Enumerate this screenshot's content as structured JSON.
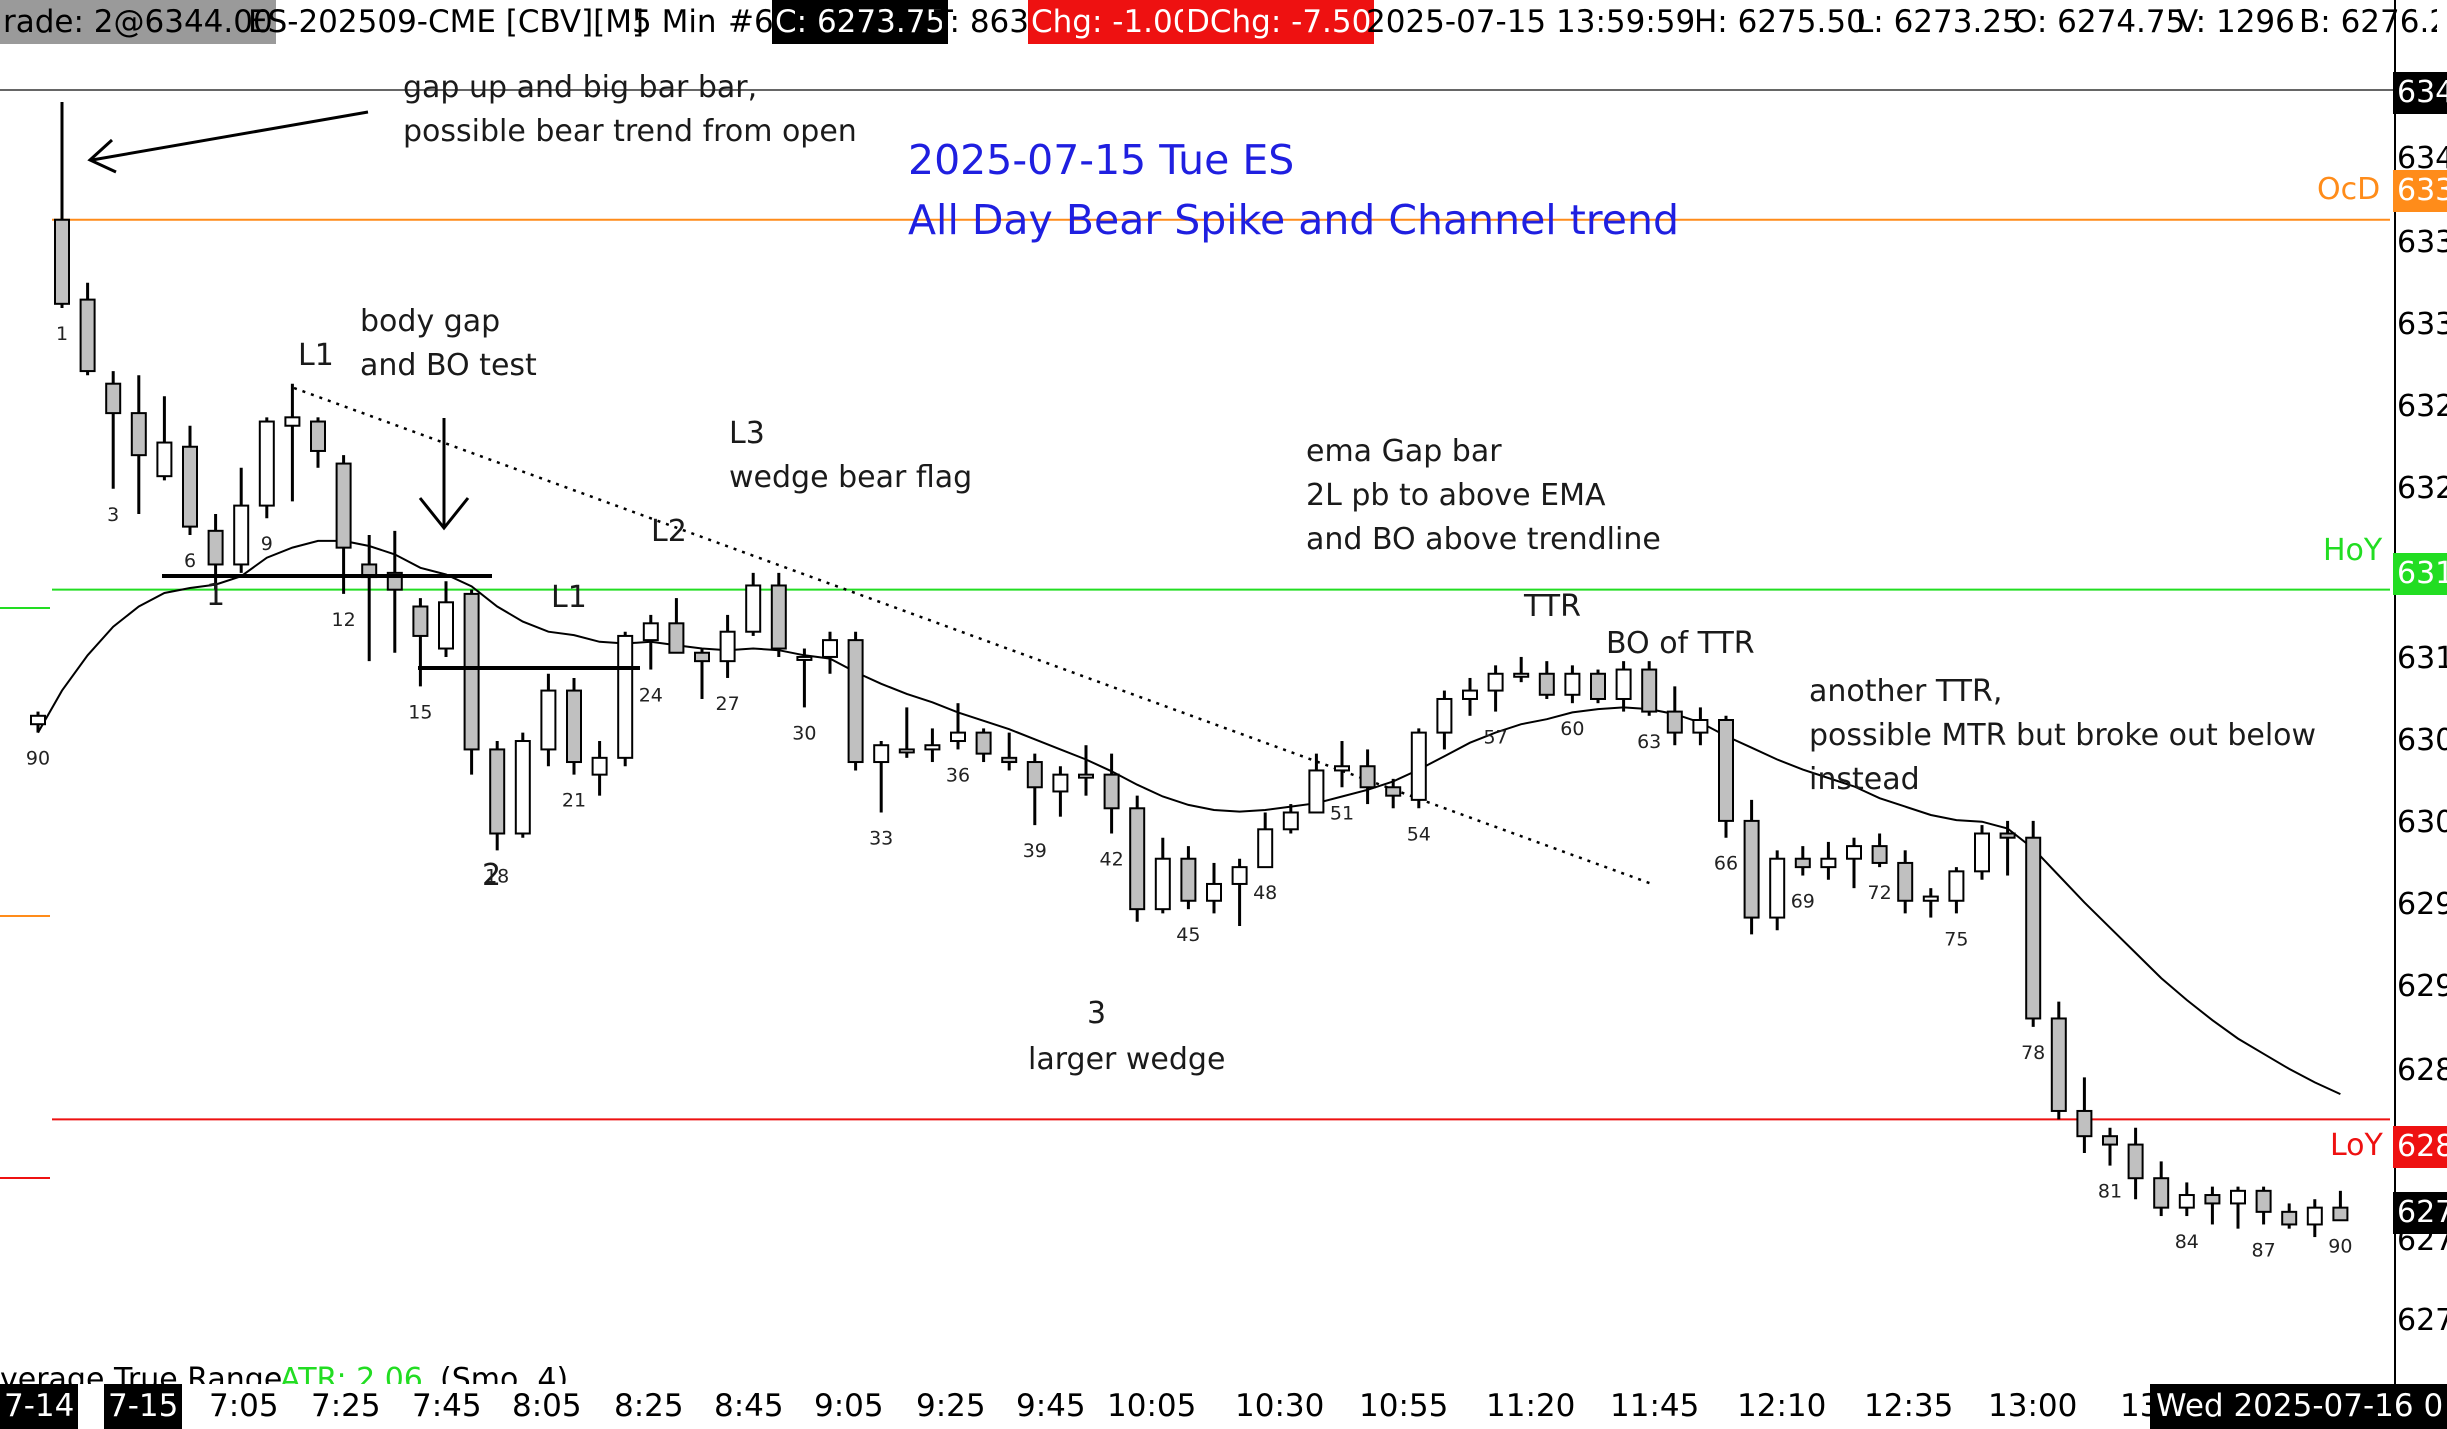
{
  "header": {
    "trade": "rade: 2@6344.00",
    "symbol": "ES-202509-CME [CBV][M]",
    "interval": "5 Min",
    "bar_no": "#6",
    "close": "C: 6273.75",
    "ticks": "T: 863",
    "chg": "Chg: -1.00",
    "dchg": "DChg: -7.50",
    "datetime": "2025-07-15 13:59:59",
    "high": "H: 6275.50",
    "low": "L: 6273.25",
    "open": "O: 6274.75",
    "volume": "V: 1296",
    "bid": "B: 6276.2"
  },
  "title": {
    "line1": "2025-07-15 Tue ES",
    "line2": "All Day Bear Spike and Channel trend"
  },
  "colors": {
    "title": "#1f1fe0",
    "open_line": "#ff8c1a",
    "hoy_line": "#22dd22",
    "loy_line": "#ee1111",
    "change_box": "#ee1111",
    "ema": "#000000",
    "candle_up": "#ffffff",
    "candle_down": "#c0c0c0"
  },
  "levels": {
    "ocd": "OcD",
    "hoy": "HoY",
    "loy": "LoY"
  },
  "price_axis": [
    "634",
    "634",
    "633",
    "633",
    "633",
    "632",
    "632",
    "631",
    "631",
    "630",
    "630",
    "629",
    "629",
    "628",
    "628",
    "627",
    "627",
    "627"
  ],
  "time_axis": [
    "7-14",
    "7-15",
    "7:05",
    "7:25",
    "7:45",
    "8:05",
    "8:25",
    "8:45",
    "9:05",
    "9:25",
    "9:45",
    "10:05",
    "10:30",
    "10:55",
    "11:20",
    "11:45",
    "12:10",
    "12:35",
    "13:00",
    "13",
    "Wed 2025-07-16 0"
  ],
  "annotations": {
    "gap_up": "gap up and big bar bar,\npossible bear trend from open",
    "body_gap": "body gap\nand BO test",
    "l1_top": "L1",
    "l3": "L3\nwedge bear flag",
    "l2": "L2",
    "l1_mid": "L1",
    "one": "1",
    "two": "2",
    "three": "3",
    "larger_wedge": "larger wedge",
    "ema_gap": "ema Gap bar\n2L pb to above EMA\nand BO above trendline",
    "ttr": "TTR",
    "bo_ttr": "BO of TTR",
    "another_ttr": "another TTR,\npossible MTR but broke out below\ninstead"
  },
  "indicator": {
    "name": "verage True Range",
    "value": "ATR: 2.06",
    "params": "(Smo, 4)"
  },
  "bar_labels": [
    {
      "n": "90",
      "bar": 0
    },
    {
      "n": "1",
      "bar": 1
    },
    {
      "n": "3",
      "bar": 3
    },
    {
      "n": "6",
      "bar": 6
    },
    {
      "n": "9",
      "bar": 9
    },
    {
      "n": "12",
      "bar": 12
    },
    {
      "n": "15",
      "bar": 15
    },
    {
      "n": "18",
      "bar": 18
    },
    {
      "n": "21",
      "bar": 21
    },
    {
      "n": "24",
      "bar": 24
    },
    {
      "n": "27",
      "bar": 27
    },
    {
      "n": "30",
      "bar": 30
    },
    {
      "n": "33",
      "bar": 33
    },
    {
      "n": "36",
      "bar": 36
    },
    {
      "n": "39",
      "bar": 39
    },
    {
      "n": "42",
      "bar": 42
    },
    {
      "n": "45",
      "bar": 45
    },
    {
      "n": "48",
      "bar": 48
    },
    {
      "n": "51",
      "bar": 51
    },
    {
      "n": "54",
      "bar": 54
    },
    {
      "n": "57",
      "bar": 57
    },
    {
      "n": "60",
      "bar": 60
    },
    {
      "n": "63",
      "bar": 63
    },
    {
      "n": "66",
      "bar": 66
    },
    {
      "n": "69",
      "bar": 69
    },
    {
      "n": "72",
      "bar": 72
    },
    {
      "n": "75",
      "bar": 75
    },
    {
      "n": "78",
      "bar": 78
    },
    {
      "n": "81",
      "bar": 81
    },
    {
      "n": "84",
      "bar": 84
    },
    {
      "n": "87",
      "bar": 87
    },
    {
      "n": "90",
      "bar": 90
    }
  ],
  "chart_data": {
    "type": "candlestick",
    "title": "2025-07-15 Tue ES",
    "subtitle": "All Day Bear Spike and Channel trend",
    "interval": "5 Min",
    "levels": {
      "ocd": 6336.5,
      "hoy": 6314.5,
      "loy": 6283.0
    },
    "ylim": [
      6267.5,
      6346.0
    ],
    "bars": [
      {
        "o": 6306.5,
        "h": 6307.25,
        "l": 6306.0,
        "c": 6307.0
      },
      {
        "o": 6336.5,
        "h": 6343.5,
        "l": 6331.25,
        "c": 6331.5
      },
      {
        "o": 6331.75,
        "h": 6332.75,
        "l": 6327.25,
        "c": 6327.5
      },
      {
        "o": 6326.75,
        "h": 6327.5,
        "l": 6320.5,
        "c": 6325.0
      },
      {
        "o": 6325.0,
        "h": 6327.25,
        "l": 6319.0,
        "c": 6322.5
      },
      {
        "o": 6321.25,
        "h": 6326.0,
        "l": 6321.0,
        "c": 6323.25
      },
      {
        "o": 6323.0,
        "h": 6324.25,
        "l": 6317.75,
        "c": 6318.25
      },
      {
        "o": 6318.0,
        "h": 6319.0,
        "l": 6314.5,
        "c": 6316.0
      },
      {
        "o": 6316.0,
        "h": 6321.75,
        "l": 6315.5,
        "c": 6319.5
      },
      {
        "o": 6319.5,
        "h": 6324.75,
        "l": 6318.75,
        "c": 6324.5
      },
      {
        "o": 6324.25,
        "h": 6326.75,
        "l": 6319.75,
        "c": 6324.75
      },
      {
        "o": 6324.5,
        "h": 6324.75,
        "l": 6321.75,
        "c": 6322.75
      },
      {
        "o": 6322.0,
        "h": 6322.5,
        "l": 6314.25,
        "c": 6317.0
      },
      {
        "o": 6316.0,
        "h": 6317.75,
        "l": 6310.25,
        "c": 6315.25
      },
      {
        "o": 6315.5,
        "h": 6318.0,
        "l": 6310.75,
        "c": 6314.5
      },
      {
        "o": 6313.5,
        "h": 6314.0,
        "l": 6308.75,
        "c": 6311.75
      },
      {
        "o": 6311.0,
        "h": 6315.0,
        "l": 6310.5,
        "c": 6313.75
      },
      {
        "o": 6314.25,
        "h": 6314.5,
        "l": 6303.5,
        "c": 6305.0
      },
      {
        "o": 6305.0,
        "h": 6305.5,
        "l": 6299.0,
        "c": 6300.0
      },
      {
        "o": 6300.0,
        "h": 6306.0,
        "l": 6299.75,
        "c": 6305.5
      },
      {
        "o": 6305.0,
        "h": 6309.5,
        "l": 6304.0,
        "c": 6308.5
      },
      {
        "o": 6308.5,
        "h": 6309.25,
        "l": 6303.5,
        "c": 6304.25
      },
      {
        "o": 6303.5,
        "h": 6305.5,
        "l": 6302.25,
        "c": 6304.5
      },
      {
        "o": 6304.5,
        "h": 6312.0,
        "l": 6304.0,
        "c": 6311.75
      },
      {
        "o": 6311.5,
        "h": 6313.0,
        "l": 6309.75,
        "c": 6312.5
      },
      {
        "o": 6312.5,
        "h": 6314.0,
        "l": 6310.75,
        "c": 6310.75
      },
      {
        "o": 6310.75,
        "h": 6311.0,
        "l": 6308.0,
        "c": 6310.25
      },
      {
        "o": 6310.25,
        "h": 6313.0,
        "l": 6309.25,
        "c": 6312.0
      },
      {
        "o": 6312.0,
        "h": 6315.5,
        "l": 6311.75,
        "c": 6314.75
      },
      {
        "o": 6314.75,
        "h": 6315.5,
        "l": 6310.5,
        "c": 6311.0
      },
      {
        "o": 6310.5,
        "h": 6311.0,
        "l": 6307.5,
        "c": 6310.5
      },
      {
        "o": 6310.5,
        "h": 6312.0,
        "l": 6309.5,
        "c": 6311.5
      },
      {
        "o": 6311.5,
        "h": 6312.0,
        "l": 6303.75,
        "c": 6304.25
      },
      {
        "o": 6304.25,
        "h": 6305.5,
        "l": 6301.25,
        "c": 6305.25
      },
      {
        "o": 6305.0,
        "h": 6307.5,
        "l": 6304.5,
        "c": 6305.0
      },
      {
        "o": 6305.0,
        "h": 6306.25,
        "l": 6304.25,
        "c": 6305.25
      },
      {
        "o": 6305.5,
        "h": 6307.75,
        "l": 6305.0,
        "c": 6306.0
      },
      {
        "o": 6306.0,
        "h": 6306.25,
        "l": 6304.25,
        "c": 6304.75
      },
      {
        "o": 6304.5,
        "h": 6306.0,
        "l": 6303.75,
        "c": 6304.25
      },
      {
        "o": 6304.25,
        "h": 6304.75,
        "l": 6300.5,
        "c": 6302.75
      },
      {
        "o": 6302.5,
        "h": 6304.0,
        "l": 6301.0,
        "c": 6303.5
      },
      {
        "o": 6303.5,
        "h": 6305.25,
        "l": 6302.25,
        "c": 6303.5
      },
      {
        "o": 6303.5,
        "h": 6304.75,
        "l": 6300.0,
        "c": 6301.5
      },
      {
        "o": 6301.5,
        "h": 6302.25,
        "l": 6294.75,
        "c": 6295.5
      },
      {
        "o": 6295.5,
        "h": 6299.75,
        "l": 6295.25,
        "c": 6298.5
      },
      {
        "o": 6298.5,
        "h": 6299.25,
        "l": 6295.5,
        "c": 6296.0
      },
      {
        "o": 6296.0,
        "h": 6298.25,
        "l": 6295.25,
        "c": 6297.0
      },
      {
        "o": 6297.0,
        "h": 6298.5,
        "l": 6294.5,
        "c": 6298.0
      },
      {
        "o": 6298.0,
        "h": 6301.25,
        "l": 6298.0,
        "c": 6300.25
      },
      {
        "o": 6300.25,
        "h": 6301.75,
        "l": 6300.0,
        "c": 6301.25
      },
      {
        "o": 6301.25,
        "h": 6304.75,
        "l": 6301.25,
        "c": 6303.75
      },
      {
        "o": 6303.75,
        "h": 6305.5,
        "l": 6302.75,
        "c": 6304.0
      },
      {
        "o": 6304.0,
        "h": 6305.0,
        "l": 6301.75,
        "c": 6302.75
      },
      {
        "o": 6302.75,
        "h": 6303.25,
        "l": 6301.5,
        "c": 6302.25
      },
      {
        "o": 6302.0,
        "h": 6306.25,
        "l": 6301.5,
        "c": 6306.0
      },
      {
        "o": 6306.0,
        "h": 6308.5,
        "l": 6305.0,
        "c": 6308.0
      },
      {
        "o": 6308.0,
        "h": 6309.25,
        "l": 6307.0,
        "c": 6308.5
      },
      {
        "o": 6308.5,
        "h": 6310.0,
        "l": 6307.25,
        "c": 6309.5
      },
      {
        "o": 6309.5,
        "h": 6310.5,
        "l": 6309.0,
        "c": 6309.5
      },
      {
        "o": 6309.5,
        "h": 6310.25,
        "l": 6308.0,
        "c": 6308.25
      },
      {
        "o": 6308.25,
        "h": 6310.0,
        "l": 6307.75,
        "c": 6309.5
      },
      {
        "o": 6309.5,
        "h": 6309.75,
        "l": 6307.75,
        "c": 6308.0
      },
      {
        "o": 6308.0,
        "h": 6310.25,
        "l": 6307.25,
        "c": 6309.75
      },
      {
        "o": 6309.75,
        "h": 6310.25,
        "l": 6307.0,
        "c": 6307.25
      },
      {
        "o": 6307.25,
        "h": 6308.75,
        "l": 6305.25,
        "c": 6306.0
      },
      {
        "o": 6306.0,
        "h": 6307.5,
        "l": 6305.25,
        "c": 6306.75
      },
      {
        "o": 6306.75,
        "h": 6307.0,
        "l": 6299.75,
        "c": 6300.75
      },
      {
        "o": 6300.75,
        "h": 6302.0,
        "l": 6294.0,
        "c": 6295.0
      },
      {
        "o": 6295.0,
        "h": 6299.0,
        "l": 6294.25,
        "c": 6298.5
      },
      {
        "o": 6298.5,
        "h": 6299.25,
        "l": 6297.5,
        "c": 6298.0
      },
      {
        "o": 6298.0,
        "h": 6299.5,
        "l": 6297.25,
        "c": 6298.5
      },
      {
        "o": 6298.5,
        "h": 6299.75,
        "l": 6296.75,
        "c": 6299.25
      },
      {
        "o": 6299.25,
        "h": 6300.0,
        "l": 6298.0,
        "c": 6298.25
      },
      {
        "o": 6298.25,
        "h": 6299.0,
        "l": 6295.25,
        "c": 6296.0
      },
      {
        "o": 6296.0,
        "h": 6296.75,
        "l": 6295.0,
        "c": 6296.25
      },
      {
        "o": 6296.0,
        "h": 6298.0,
        "l": 6295.25,
        "c": 6297.75
      },
      {
        "o": 6297.75,
        "h": 6300.5,
        "l": 6297.25,
        "c": 6300.0
      },
      {
        "o": 6300.0,
        "h": 6300.75,
        "l": 6297.5,
        "c": 6299.75
      },
      {
        "o": 6299.75,
        "h": 6300.75,
        "l": 6288.5,
        "c": 6289.0
      },
      {
        "o": 6289.0,
        "h": 6290.0,
        "l": 6283.0,
        "c": 6283.5
      },
      {
        "o": 6283.5,
        "h": 6285.5,
        "l": 6281.0,
        "c": 6282.0
      },
      {
        "o": 6282.0,
        "h": 6282.5,
        "l": 6280.25,
        "c": 6281.5
      },
      {
        "o": 6281.5,
        "h": 6282.5,
        "l": 6278.25,
        "c": 6279.5
      },
      {
        "o": 6279.5,
        "h": 6280.5,
        "l": 6277.25,
        "c": 6277.75
      },
      {
        "o": 6277.75,
        "h": 6279.25,
        "l": 6277.25,
        "c": 6278.5
      },
      {
        "o": 6278.5,
        "h": 6279.0,
        "l": 6276.75,
        "c": 6278.0
      },
      {
        "o": 6278.0,
        "h": 6279.0,
        "l": 6276.5,
        "c": 6278.75
      },
      {
        "o": 6278.75,
        "h": 6279.0,
        "l": 6276.75,
        "c": 6277.5
      },
      {
        "o": 6277.5,
        "h": 6278.0,
        "l": 6276.5,
        "c": 6276.75
      },
      {
        "o": 6276.75,
        "h": 6278.25,
        "l": 6276.0,
        "c": 6277.75
      },
      {
        "o": 6277.75,
        "h": 6278.75,
        "l": 6277.0,
        "c": 6277.0
      }
    ],
    "ema": [
      6306.0,
      6308.5,
      6310.6,
      6312.3,
      6313.5,
      6314.3,
      6314.6,
      6314.8,
      6315.3,
      6316.4,
      6317.0,
      6317.4,
      6317.4,
      6317.1,
      6316.6,
      6315.8,
      6315.4,
      6314.7,
      6313.5,
      6312.6,
      6312.0,
      6311.8,
      6311.4,
      6311.3,
      6311.4,
      6311.2,
      6311.0,
      6310.9,
      6311.0,
      6310.9,
      6310.6,
      6310.4,
      6309.6,
      6308.9,
      6308.3,
      6307.8,
      6307.2,
      6306.7,
      6306.2,
      6305.6,
      6305.0,
      6304.4,
      6303.7,
      6302.9,
      6302.2,
      6301.7,
      6301.4,
      6301.3,
      6301.4,
      6301.6,
      6301.8,
      6302.2,
      6302.6,
      6303.1,
      6303.8,
      6304.6,
      6305.4,
      6306.0,
      6306.5,
      6306.8,
      6307.2,
      6307.4,
      6307.5,
      6307.4,
      6307.1,
      6306.6,
      6305.8,
      6305.1,
      6304.4,
      6303.8,
      6303.3,
      6302.8,
      6302.1,
      6301.6,
      6301.1,
      6300.8,
      6300.7,
      6300.3,
      6299.1,
      6297.5,
      6295.9,
      6294.4,
      6292.9,
      6291.4,
      6290.1,
      6288.9,
      6287.8,
      6286.9,
      6286.0,
      6285.2,
      6284.5
    ]
  }
}
